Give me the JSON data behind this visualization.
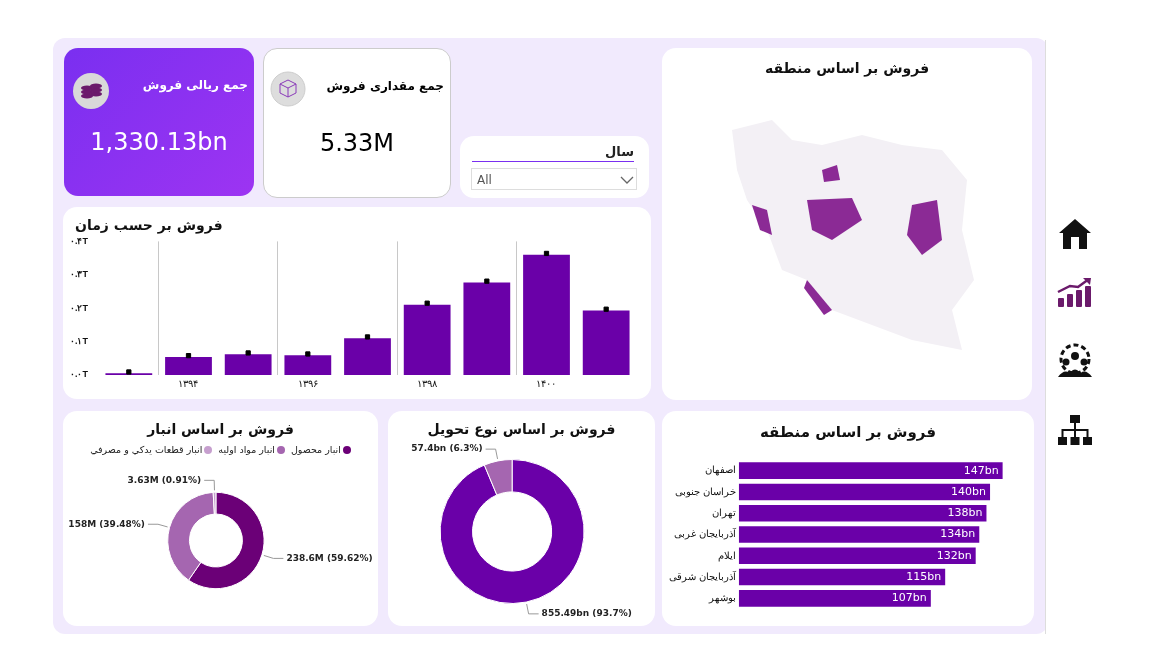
{
  "chart_data": [
    {
      "type": "other",
      "title": "جمع ریالی فروش",
      "annotations": [
        "1,330.13bn"
      ]
    },
    {
      "type": "other",
      "title": "جمع مقداری فروش",
      "annotations": [
        "5.33M"
      ]
    },
    {
      "type": "other",
      "title": "سال",
      "annotations": [
        "All"
      ]
    },
    {
      "type": "other",
      "title": "فروش بر اساس منطقه"
    },
    {
      "type": "bar",
      "title": "فروش بر حسب زمان",
      "categories": [
        null,
        "۱۳۹۴",
        null,
        "۱۳۹۶",
        null,
        "۱۳۹۸",
        null,
        "۱۴۰۰",
        null
      ],
      "series": [
        {
          "type": "bar",
          "color": "#6a00a8",
          "values": [
            0.005,
            0.054,
            0.062,
            0.059,
            0.11,
            0.21,
            0.277,
            0.36,
            0.193
          ]
        },
        {
          "type": "scatter",
          "color": "#000000",
          "values": [
            0.009,
            0.058,
            0.066,
            0.063,
            0.114,
            0.215,
            0.281,
            0.364,
            0.197
          ]
        }
      ],
      "marker": "square",
      "ylim": [
        0,
        0.4
      ],
      "yticks": [
        {
          "value": 0,
          "label": "۰.۰T"
        },
        {
          "value": 0.1,
          "label": "۰.۱T"
        },
        {
          "value": 0.2,
          "label": "۰.۲T"
        },
        {
          "value": 0.3,
          "label": "۰.۳T"
        },
        {
          "value": 0.4,
          "label": "۰.۴T"
        }
      ],
      "grid": "x",
      "legend": false
    },
    {
      "type": "donut",
      "title": "فروش بر اساس انبار",
      "categories": [
        "انبار محصول",
        "انبار مواد اولیه",
        "انبار قطعات يدكي و مصرفي"
      ],
      "values": [
        59.62,
        39.48,
        0.91
      ],
      "colors": [
        "#6b0077",
        "#a566b0",
        "#c69fce"
      ],
      "value_labels": [
        "238.6M (59.62%)",
        "158M (39.48%)",
        "3.63M (0.91%)"
      ],
      "legend": "top"
    },
    {
      "type": "donut",
      "title": "فروش بر اساس نوع تحویل",
      "categories": [
        null,
        null
      ],
      "values": [
        93.7,
        6.3
      ],
      "colors": [
        "#6a00a8",
        "#a566b0"
      ],
      "value_labels": [
        "855.49bn (93.7%)",
        "57.4bn (6.3%)"
      ]
    },
    {
      "type": "bar",
      "orientation": "horizontal",
      "title": "فروش بر اساس منطقه",
      "categories": [
        "اصفهان",
        "خراسان جنوبی",
        "تهران",
        "آذربایجان غربی",
        "ایلام",
        "آذربایجان شرقی",
        "بوشهر"
      ],
      "values": [
        147,
        140,
        138,
        134,
        132,
        115,
        107
      ],
      "color": "#6a00a8",
      "value_labels": [
        "147bn",
        "140bn",
        "138bn",
        "134bn",
        "132bn",
        "115bn",
        "107bn"
      ],
      "tick_labels": "y"
    }
  ]
}
